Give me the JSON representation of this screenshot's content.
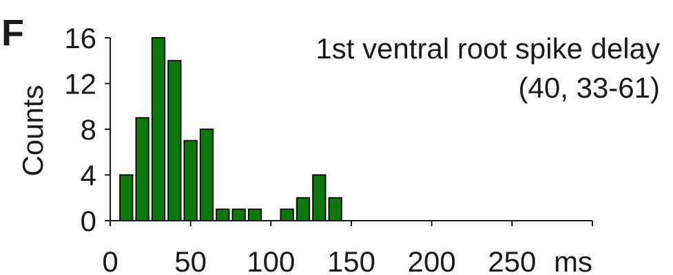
{
  "panel_label": "F",
  "chart_data": {
    "type": "bar",
    "title": "1st ventral root spike delay",
    "subtitle": "(40, 33-61)",
    "xlabel": "ms",
    "ylabel": "Counts",
    "xlim": [
      0,
      300
    ],
    "ylim": [
      0,
      16
    ],
    "bin_width": 10,
    "x_ticks": [
      0,
      50,
      100,
      150,
      200,
      250
    ],
    "y_ticks": [
      0,
      4,
      8,
      12,
      16
    ],
    "bins": [
      10,
      20,
      30,
      40,
      50,
      60,
      70,
      80,
      90,
      110,
      120,
      130,
      140
    ],
    "values": [
      4,
      9,
      16,
      14,
      7,
      8,
      1,
      1,
      1,
      1,
      2,
      4,
      2
    ],
    "bar_color": "#0b7a0b",
    "grid": false,
    "legend": "none"
  }
}
